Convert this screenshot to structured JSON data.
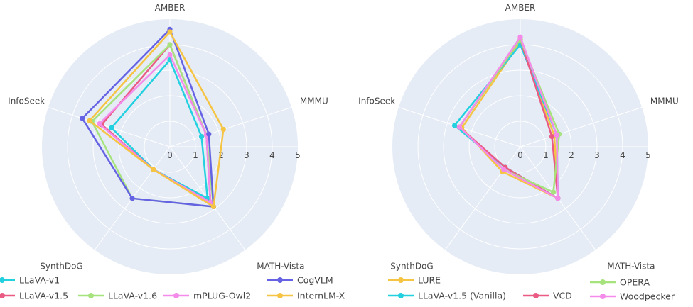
{
  "chart_data": [
    {
      "type": "radar",
      "axes": [
        "AMBER",
        "MMMU",
        "MATH-Vista",
        "SynthDoG",
        "InfoSeek"
      ],
      "radial_ticks": [
        "0",
        "1",
        "2",
        "3",
        "4",
        "5"
      ],
      "rlim": [
        0,
        5
      ],
      "grid": true,
      "legend_position": "bottom",
      "series": [
        {
          "name": "LLaVA-v1",
          "color": "#22d0e0",
          "values": [
            3.4,
            1.3,
            2.5,
            1.1,
            2.4
          ]
        },
        {
          "name": "LLaVA-v1.5",
          "color": "#ea5b84",
          "values": [
            4.0,
            1.5,
            2.7,
            1.1,
            2.8
          ]
        },
        {
          "name": "LLaVA-v1.6",
          "color": "#a6e37d",
          "values": [
            4.0,
            1.5,
            2.9,
            2.5,
            3.2
          ]
        },
        {
          "name": "mPLUG-Owl2",
          "color": "#f48ae9",
          "values": [
            3.6,
            1.5,
            2.7,
            1.1,
            2.9
          ]
        },
        {
          "name": "CogVLM",
          "color": "#6563e3",
          "values": [
            4.6,
            1.6,
            2.9,
            2.5,
            3.6
          ]
        },
        {
          "name": "InternLM-X",
          "color": "#f6c443",
          "values": [
            4.5,
            2.2,
            2.9,
            1.1,
            3.3
          ]
        }
      ]
    },
    {
      "type": "radar",
      "axes": [
        "AMBER",
        "MMMU",
        "MATH-Vista",
        "SynthDoG",
        "InfoSeek"
      ],
      "radial_ticks": [
        "0",
        "1",
        "2",
        "3",
        "4",
        "5"
      ],
      "rlim": [
        0,
        5
      ],
      "grid": true,
      "legend_position": "bottom",
      "series": [
        {
          "name": "LURE",
          "color": "#f6c443",
          "values": [
            4.1,
            1.4,
            2.5,
            1.2,
            2.4
          ]
        },
        {
          "name": "LLaVA-v1.5 (Vanilla)",
          "color": "#22d0e0",
          "values": [
            4.0,
            1.5,
            2.5,
            1.0,
            2.7
          ]
        },
        {
          "name": "VCD",
          "color": "#ea5b84",
          "values": [
            4.2,
            1.3,
            2.5,
            1.0,
            2.5
          ]
        },
        {
          "name": "OPERA",
          "color": "#a6e37d",
          "values": [
            4.2,
            1.6,
            2.2,
            1.1,
            2.5
          ]
        },
        {
          "name": "Woodpecker",
          "color": "#f48ae9",
          "values": [
            4.3,
            1.5,
            2.5,
            1.1,
            2.5
          ]
        }
      ]
    }
  ]
}
